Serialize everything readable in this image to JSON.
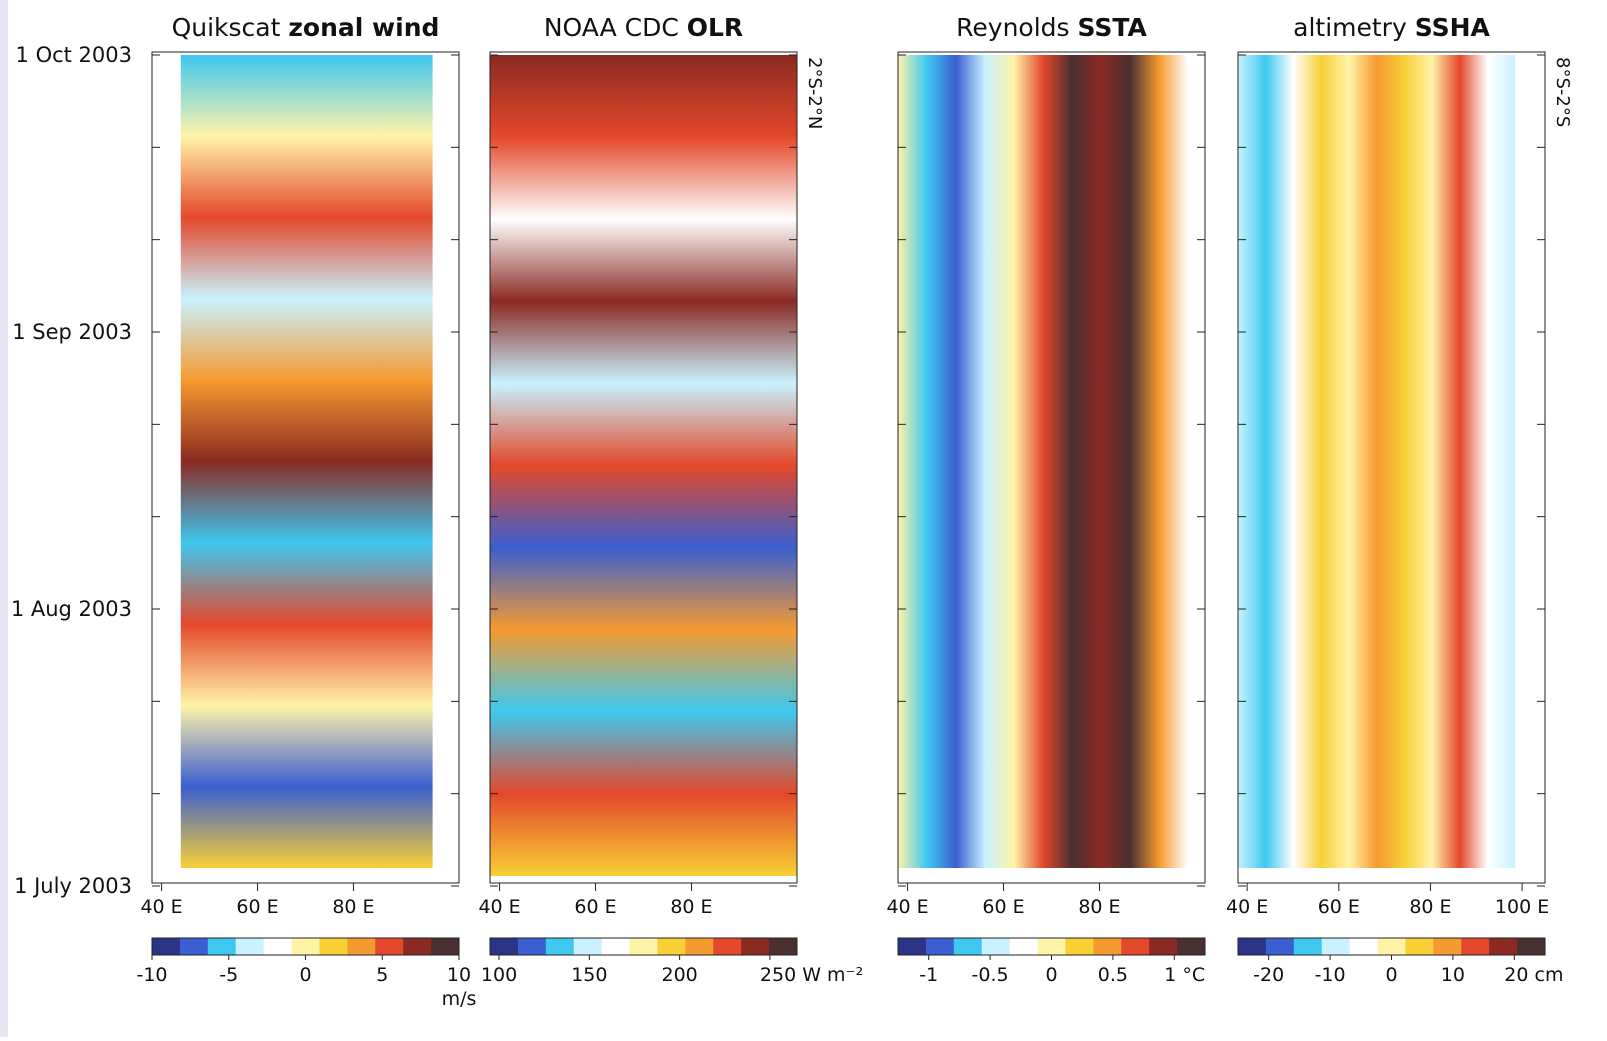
{
  "chart_data": [
    {
      "type": "hovmoller",
      "title_plain": "Quikscat",
      "title_bold": "zonal wind",
      "xlim": [
        38,
        102
      ],
      "xticks": [
        {
          "value": 40,
          "label": "40 E"
        },
        {
          "value": 60,
          "label": "60 E"
        },
        {
          "value": 80,
          "label": "80 E"
        }
      ],
      "colorbar": {
        "lim": [
          -10,
          10
        ],
        "ticks": [
          -10,
          -5,
          0,
          5,
          10
        ],
        "unit": "m/s"
      },
      "colors": [
        "#2c3585",
        "#3a5fd0",
        "#3ec8f0",
        "#c8f2ff",
        "#ffffff",
        "#fff3a8",
        "#f7d036",
        "#f59a30",
        "#e4482a",
        "#8a2a22",
        "#4a3030"
      ]
    },
    {
      "type": "hovmoller",
      "title_plain": "NOAA CDC",
      "title_bold": "OLR",
      "band_label": "2°S-2°N",
      "xlim": [
        38,
        102
      ],
      "xticks": [
        {
          "value": 40,
          "label": "40 E"
        },
        {
          "value": 60,
          "label": "60 E"
        },
        {
          "value": 80,
          "label": "80 E"
        }
      ],
      "colorbar": {
        "lim": [
          95,
          265
        ],
        "ticks": [
          100,
          150,
          200,
          {
            "value": 250,
            "label": "250 W m⁻²"
          }
        ]
      },
      "colors": [
        "#2c3585",
        "#3a5fd0",
        "#3ec8f0",
        "#c8f2ff",
        "#ffffff",
        "#fff3a8",
        "#f7d036",
        "#f59a30",
        "#e4482a",
        "#8a2a22",
        "#4a3030"
      ]
    },
    {
      "type": "hovmoller",
      "title_plain": "Reynolds",
      "title_bold": "SSTA",
      "xlim": [
        38,
        102
      ],
      "xticks": [
        {
          "value": 40,
          "label": "40 E"
        },
        {
          "value": 60,
          "label": "60 E"
        },
        {
          "value": 80,
          "label": "80 E"
        }
      ],
      "colorbar": {
        "lim": [
          -1.25,
          1.25
        ],
        "ticks": [
          -1,
          -0.5,
          0,
          0.5,
          {
            "value": 1,
            "label": "1 °C"
          }
        ]
      },
      "colors": [
        "#2c3585",
        "#3a5fd0",
        "#3ec8f0",
        "#c8f2ff",
        "#ffffff",
        "#fff3a8",
        "#f7d036",
        "#f59a30",
        "#e4482a",
        "#8a2a22",
        "#4a3030"
      ]
    },
    {
      "type": "hovmoller",
      "title_plain": "altimetry",
      "title_bold": "SSHA",
      "band_label": "8°S-2°S",
      "xlim": [
        38,
        105
      ],
      "xticks": [
        {
          "value": 40,
          "label": "40 E"
        },
        {
          "value": 60,
          "label": "60 E"
        },
        {
          "value": 80,
          "label": "80 E"
        },
        {
          "value": 100,
          "label": "100 E"
        }
      ],
      "colorbar": {
        "lim": [
          -25,
          25
        ],
        "ticks": [
          -20,
          -10,
          0,
          10,
          {
            "value": 20,
            "label": "20 cm"
          }
        ]
      },
      "colors": [
        "#2c3585",
        "#3a5fd0",
        "#3ec8f0",
        "#c8f2ff",
        "#ffffff",
        "#fff3a8",
        "#f7d036",
        "#f59a30",
        "#e4482a",
        "#8a2a22",
        "#4a3030"
      ]
    }
  ],
  "y_labels": [
    "1 Oct 2003",
    "1 Sep 2003",
    "1 Aug 2003",
    "1 July 2003"
  ]
}
